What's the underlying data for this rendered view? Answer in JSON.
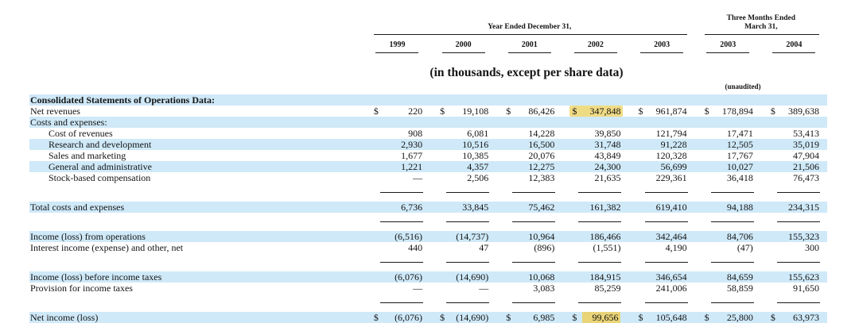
{
  "header": {
    "group_year": {
      "label": "Year Ended December 31,"
    },
    "group_quarter": {
      "line1": "Three Months Ended",
      "line2": "March 31,"
    },
    "years": [
      "1999",
      "2000",
      "2001",
      "2002",
      "2003",
      "2003",
      "2004"
    ],
    "units_note": "(in thousands, except per share data)",
    "unaudited_note": "(unaudited)"
  },
  "colors": {
    "stripe_blue": "#cfe9f8",
    "highlight_yellow": "#f0db85",
    "highlight_yellow_deep": "#e9d478"
  },
  "table": {
    "rows": [
      {
        "type": "data",
        "label": "Consolidated Statements of Operations Data:",
        "bold": true,
        "stripe": true,
        "cells": [
          "",
          "",
          "",
          "",
          "",
          "",
          ""
        ]
      },
      {
        "type": "data",
        "label": "Net revenues",
        "stripe": false,
        "currency": true,
        "cells": [
          "220",
          "19,108",
          "86,426",
          "347,848",
          "961,874",
          "178,894",
          "389,638"
        ],
        "highlight_col": 3,
        "highlight_style": "full"
      },
      {
        "type": "data",
        "label": "Costs and expenses:",
        "stripe": true,
        "cells": [
          "",
          "",
          "",
          "",
          "",
          "",
          ""
        ]
      },
      {
        "type": "data",
        "label": "Cost of revenues",
        "indent": true,
        "stripe": false,
        "cells": [
          "908",
          "6,081",
          "14,228",
          "39,850",
          "121,794",
          "17,471",
          "53,413"
        ]
      },
      {
        "type": "data",
        "label": "Research and development",
        "indent": true,
        "stripe": true,
        "cells": [
          "2,930",
          "10,516",
          "16,500",
          "31,748",
          "91,228",
          "12,505",
          "35,019"
        ]
      },
      {
        "type": "data",
        "label": "Sales and marketing",
        "indent": true,
        "stripe": false,
        "cells": [
          "1,677",
          "10,385",
          "20,076",
          "43,849",
          "120,328",
          "17,767",
          "47,904"
        ]
      },
      {
        "type": "data",
        "label": "General and administrative",
        "indent": true,
        "stripe": true,
        "cells": [
          "1,221",
          "4,357",
          "12,275",
          "24,300",
          "56,699",
          "10,027",
          "21,506"
        ]
      },
      {
        "type": "data",
        "label": "Stock-based compensation",
        "indent": true,
        "stripe": false,
        "cells": [
          "—",
          "2,506",
          "12,383",
          "21,635",
          "229,361",
          "36,418",
          "76,473"
        ]
      },
      {
        "type": "rule"
      },
      {
        "type": "data",
        "label": "Total costs and expenses",
        "stripe": true,
        "cells": [
          "6,736",
          "33,845",
          "75,462",
          "161,382",
          "619,410",
          "94,188",
          "234,315"
        ]
      },
      {
        "type": "rule"
      },
      {
        "type": "data",
        "label": "Income (loss) from operations",
        "stripe": true,
        "cells": [
          "(6,516)",
          "(14,737)",
          "10,964",
          "186,466",
          "342,464",
          "84,706",
          "155,323"
        ]
      },
      {
        "type": "data",
        "label": "Interest income (expense) and other, net",
        "stripe": false,
        "cells": [
          "440",
          "47",
          "(896)",
          "(1,551)",
          "4,190",
          "(47)",
          "300"
        ]
      },
      {
        "type": "rule"
      },
      {
        "type": "data",
        "label": "Income (loss) before income taxes",
        "stripe": true,
        "cells": [
          "(6,076)",
          "(14,690)",
          "10,068",
          "184,915",
          "346,654",
          "84,659",
          "155,623"
        ]
      },
      {
        "type": "data",
        "label": "Provision for income taxes",
        "stripe": false,
        "cells": [
          "—",
          "—",
          "3,083",
          "85,259",
          "241,006",
          "58,859",
          "91,650"
        ]
      },
      {
        "type": "rule"
      },
      {
        "type": "data",
        "label": "Net income (loss)",
        "stripe": true,
        "currency": true,
        "cells": [
          "(6,076)",
          "(14,690)",
          "6,985",
          "99,656",
          "105,648",
          "25,800",
          "63,973"
        ],
        "highlight_col": 3,
        "highlight_style": "below"
      }
    ]
  }
}
